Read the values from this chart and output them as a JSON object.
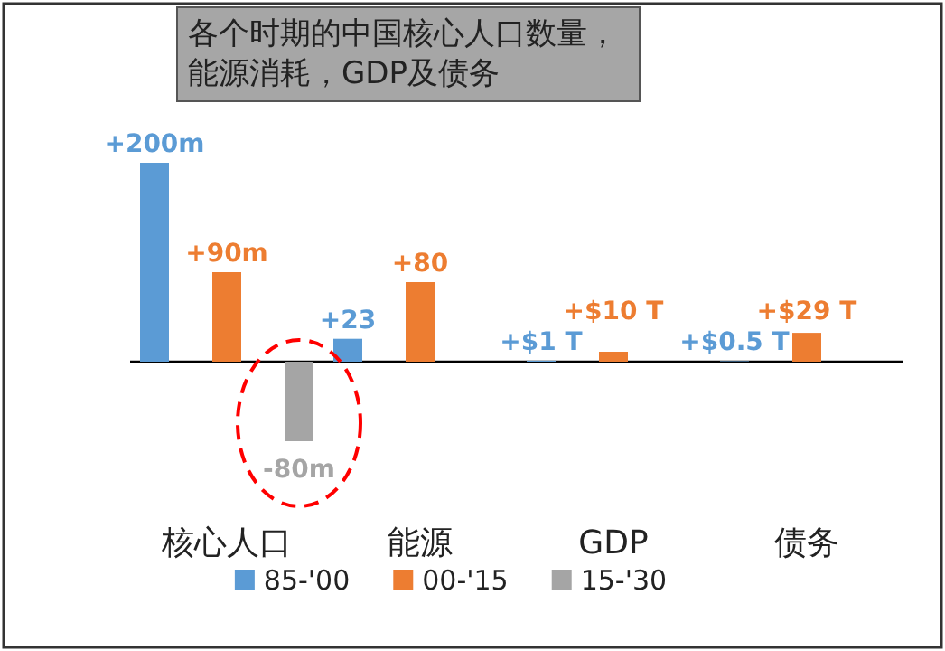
{
  "chart_data": {
    "type": "bar",
    "title": "各个时期的中国核心人口数量，能源消耗，GDP及债务",
    "categories": [
      "核心人口",
      "能源",
      "GDP",
      "债务"
    ],
    "legend": "bottom",
    "series": [
      {
        "name": "85-'00",
        "color": "#5b9bd5",
        "values": [
          200,
          23,
          1,
          0.5
        ],
        "value_labels": [
          "+200m",
          "+23",
          "+$1 T",
          "+$0.5 T"
        ]
      },
      {
        "name": "00-'15",
        "color": "#ed7d31",
        "values": [
          90,
          80,
          10,
          29
        ],
        "value_labels": [
          "+90m",
          "+80",
          "+$10 T",
          "+$29 T"
        ]
      },
      {
        "name": "15-'30",
        "color": "#a5a5a5",
        "values": [
          -80,
          null,
          null,
          null
        ],
        "value_labels": [
          "-80m",
          null,
          null,
          null
        ]
      }
    ]
  }
}
